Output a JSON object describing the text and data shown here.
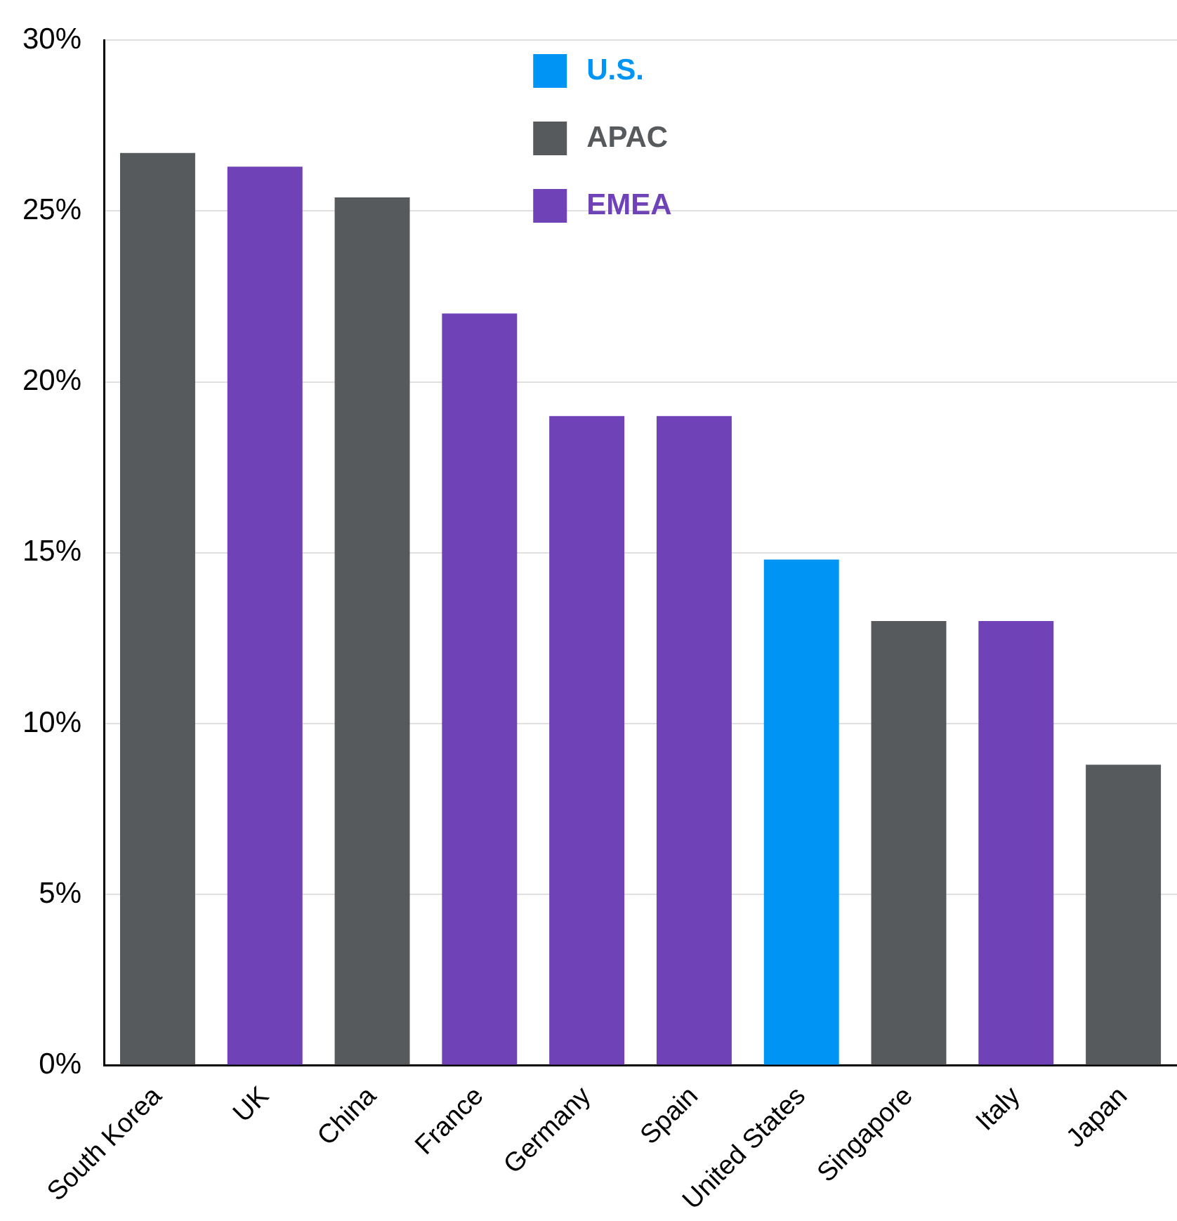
{
  "chart_data": {
    "type": "bar",
    "categories": [
      "South Korea",
      "UK",
      "China",
      "France",
      "Germany",
      "Spain",
      "United States",
      "Singapore",
      "Italy",
      "Japan"
    ],
    "series": [
      {
        "name": "U.S.",
        "color": "#0095f5",
        "values": [
          null,
          null,
          null,
          null,
          null,
          null,
          14.8,
          null,
          null,
          null
        ]
      },
      {
        "name": "APAC",
        "color": "#575a5d",
        "values": [
          26.7,
          null,
          25.4,
          null,
          null,
          null,
          null,
          13.0,
          null,
          8.8
        ]
      },
      {
        "name": "EMEA",
        "color": "#6f42b8",
        "values": [
          null,
          26.3,
          null,
          22.0,
          19.0,
          19.0,
          null,
          null,
          13.0,
          null
        ]
      }
    ],
    "ylim": [
      0,
      30
    ],
    "yticks": [
      {
        "value": 0,
        "label": "0%"
      },
      {
        "value": 5,
        "label": "5%"
      },
      {
        "value": 10,
        "label": "10%"
      },
      {
        "value": 15,
        "label": "15%"
      },
      {
        "value": 20,
        "label": "20%"
      },
      {
        "value": 25,
        "label": "25%"
      },
      {
        "value": 30,
        "label": "30%"
      }
    ],
    "grid": "y",
    "legend": "top"
  }
}
